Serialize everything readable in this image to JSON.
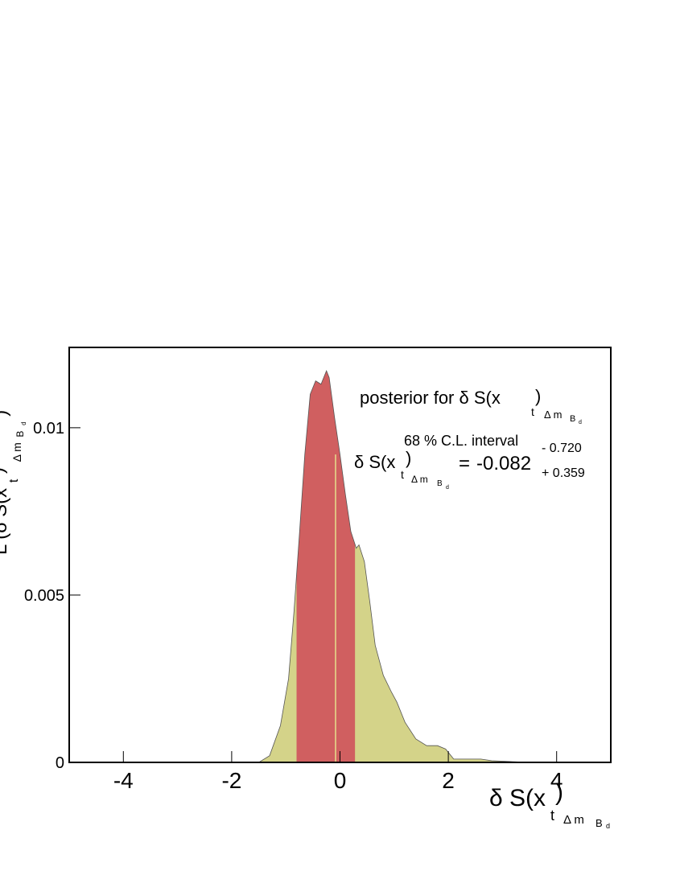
{
  "chart_data": {
    "type": "area",
    "x": [
      -5,
      -1.5,
      -1.3,
      -1.1,
      -0.95,
      -0.85,
      -0.75,
      -0.65,
      -0.55,
      -0.45,
      -0.35,
      -0.25,
      -0.2,
      -0.1,
      0.0,
      0.1,
      0.2,
      0.3,
      0.35,
      0.45,
      0.55,
      0.65,
      0.8,
      0.95,
      1.05,
      1.2,
      1.4,
      1.6,
      1.8,
      1.95,
      2.1,
      2.3,
      2.6,
      2.8,
      3.5,
      5
    ],
    "values": [
      0,
      0,
      0.0002,
      0.0011,
      0.0025,
      0.0045,
      0.0068,
      0.0092,
      0.011,
      0.0114,
      0.0113,
      0.0117,
      0.0115,
      0.0103,
      0.0092,
      0.008,
      0.0069,
      0.0064,
      0.0065,
      0.006,
      0.0048,
      0.0035,
      0.0026,
      0.0021,
      0.0018,
      0.0012,
      0.0007,
      0.0005,
      0.0005,
      0.0004,
      0.0001,
      0.0001,
      0.0001,
      5e-05,
      0,
      0
    ],
    "color": "#d4d389",
    "interval_color": "#d05f60",
    "xlim": [
      -5,
      5
    ],
    "xticks": [
      -4,
      -2,
      0,
      2,
      4
    ],
    "ylim": [
      0,
      0.0124
    ],
    "yticks": [
      0,
      0.005,
      0.01
    ],
    "x_label": [
      "δ S(x",
      "t",
      ")",
      "Δ m",
      "B",
      "d"
    ],
    "y_label": [
      "L (δ S(x",
      "t",
      ")",
      "Δ m",
      "B",
      "d",
      ")"
    ],
    "annotation": [
      "posterior for  δ S(x",
      "t",
      ")",
      "Δ m",
      "B",
      "d"
    ],
    "interval_title": "68 % C.L. interval",
    "result_label": [
      "δ S(x",
      "t",
      ")",
      "Δ m",
      "B",
      "d",
      "="
    ],
    "central": -0.082,
    "minus": {
      "value": 0.72,
      "label": "- 0.720"
    },
    "plus": {
      "value": 0.359,
      "label": "+ 0.359"
    }
  }
}
